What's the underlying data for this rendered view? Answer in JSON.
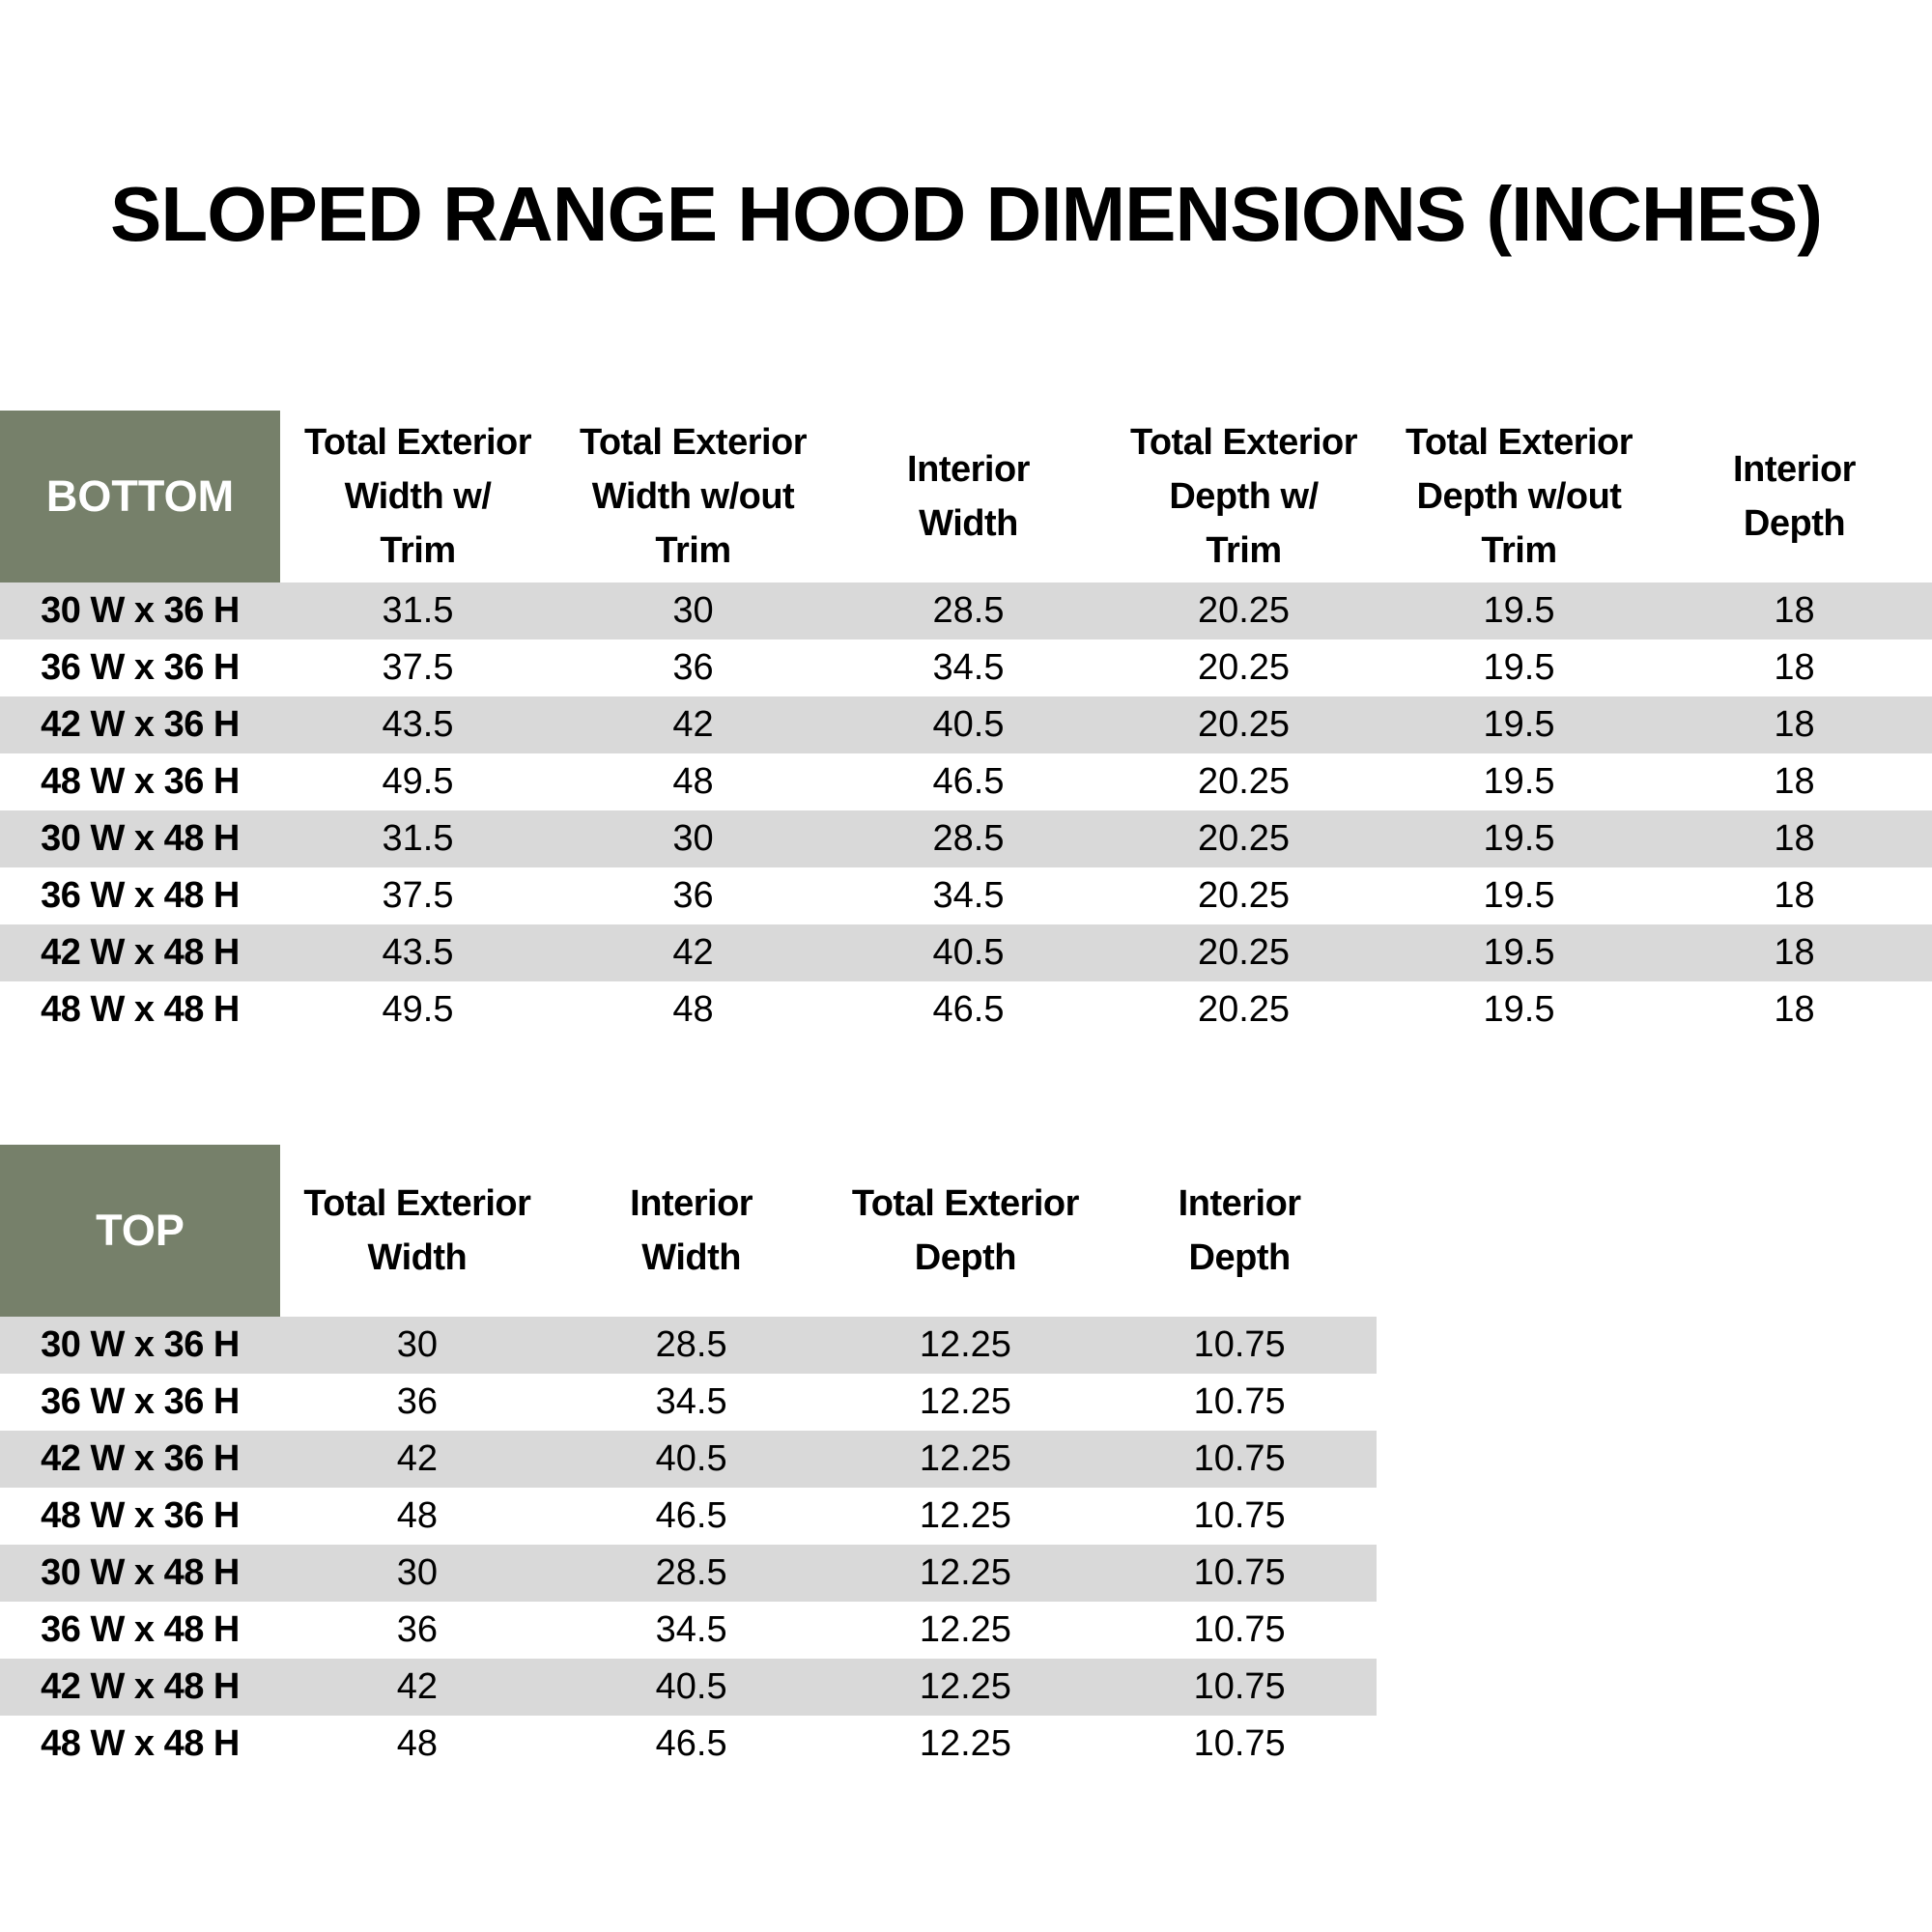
{
  "page": {
    "title": "SLOPED RANGE HOOD DIMENSIONS (INCHES)"
  },
  "colors": {
    "header_green": "#76806A",
    "row_gray": "#D9D9D9",
    "row_white": "#FFFFFF",
    "text": "#000000",
    "corner_text": "#FFFFFF"
  },
  "bottom_table": {
    "corner_label": "BOTTOM",
    "column_headers": [
      "Total Exterior\nWidth w/\nTrim",
      "Total Exterior\nWidth w/out\nTrim",
      "Interior\nWidth",
      "Total Exterior\nDepth w/\nTrim",
      "Total Exterior\nDepth w/out\nTrim",
      "Interior\nDepth"
    ],
    "rows": [
      {
        "label": "30 W x 36 H",
        "values": [
          "31.5",
          "30",
          "28.5",
          "20.25",
          "19.5",
          "18"
        ]
      },
      {
        "label": "36 W x 36 H",
        "values": [
          "37.5",
          "36",
          "34.5",
          "20.25",
          "19.5",
          "18"
        ]
      },
      {
        "label": "42 W x 36 H",
        "values": [
          "43.5",
          "42",
          "40.5",
          "20.25",
          "19.5",
          "18"
        ]
      },
      {
        "label": "48 W x 36 H",
        "values": [
          "49.5",
          "48",
          "46.5",
          "20.25",
          "19.5",
          "18"
        ]
      },
      {
        "label": "30 W x 48 H",
        "values": [
          "31.5",
          "30",
          "28.5",
          "20.25",
          "19.5",
          "18"
        ]
      },
      {
        "label": "36 W x 48 H",
        "values": [
          "37.5",
          "36",
          "34.5",
          "20.25",
          "19.5",
          "18"
        ]
      },
      {
        "label": "42 W x 48 H",
        "values": [
          "43.5",
          "42",
          "40.5",
          "20.25",
          "19.5",
          "18"
        ]
      },
      {
        "label": "48 W x 48 H",
        "values": [
          "49.5",
          "48",
          "46.5",
          "20.25",
          "19.5",
          "18"
        ]
      }
    ]
  },
  "top_table": {
    "corner_label": "TOP",
    "column_headers": [
      "Total Exterior\nWidth",
      "Interior\nWidth",
      "Total Exterior\nDepth",
      "Interior\nDepth"
    ],
    "rows": [
      {
        "label": "30 W x 36 H",
        "values": [
          "30",
          "28.5",
          "12.25",
          "10.75"
        ]
      },
      {
        "label": "36 W x 36 H",
        "values": [
          "36",
          "34.5",
          "12.25",
          "10.75"
        ]
      },
      {
        "label": "42 W x 36 H",
        "values": [
          "42",
          "40.5",
          "12.25",
          "10.75"
        ]
      },
      {
        "label": "48 W x 36 H",
        "values": [
          "48",
          "46.5",
          "12.25",
          "10.75"
        ]
      },
      {
        "label": "30 W x 48 H",
        "values": [
          "30",
          "28.5",
          "12.25",
          "10.75"
        ]
      },
      {
        "label": "36 W x 48 H",
        "values": [
          "36",
          "34.5",
          "12.25",
          "10.75"
        ]
      },
      {
        "label": "42 W x 48 H",
        "values": [
          "42",
          "40.5",
          "12.25",
          "10.75"
        ]
      },
      {
        "label": "48 W x 48 H",
        "values": [
          "48",
          "46.5",
          "12.25",
          "10.75"
        ]
      }
    ]
  }
}
